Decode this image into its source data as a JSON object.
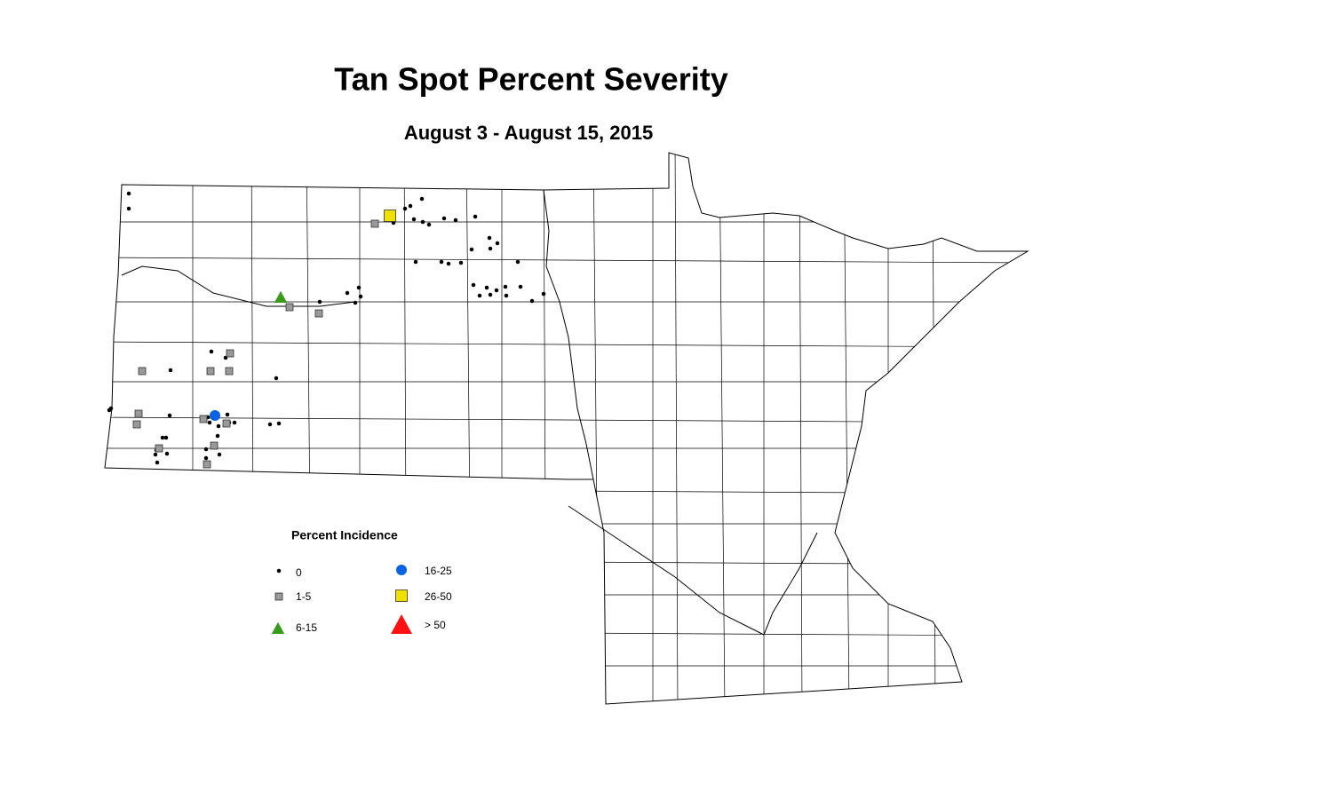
{
  "title": "Tan Spot Percent Severity",
  "subtitle": "August 3 - August 15, 2015",
  "legend": {
    "title": "Percent Incidence",
    "items": [
      {
        "label": "0",
        "shape": "dot",
        "color": "#000000"
      },
      {
        "label": "1-5",
        "shape": "square",
        "color": "#999999"
      },
      {
        "label": "6-15",
        "shape": "triangle",
        "color": "#3a9a1a"
      },
      {
        "label": "16-25",
        "shape": "circle",
        "color": "#0a63e0"
      },
      {
        "label": "26-50",
        "shape": "square",
        "color": "#f0e000"
      },
      {
        "label": "> 50",
        "shape": "triangle",
        "color": "#ff1010"
      }
    ]
  }
}
